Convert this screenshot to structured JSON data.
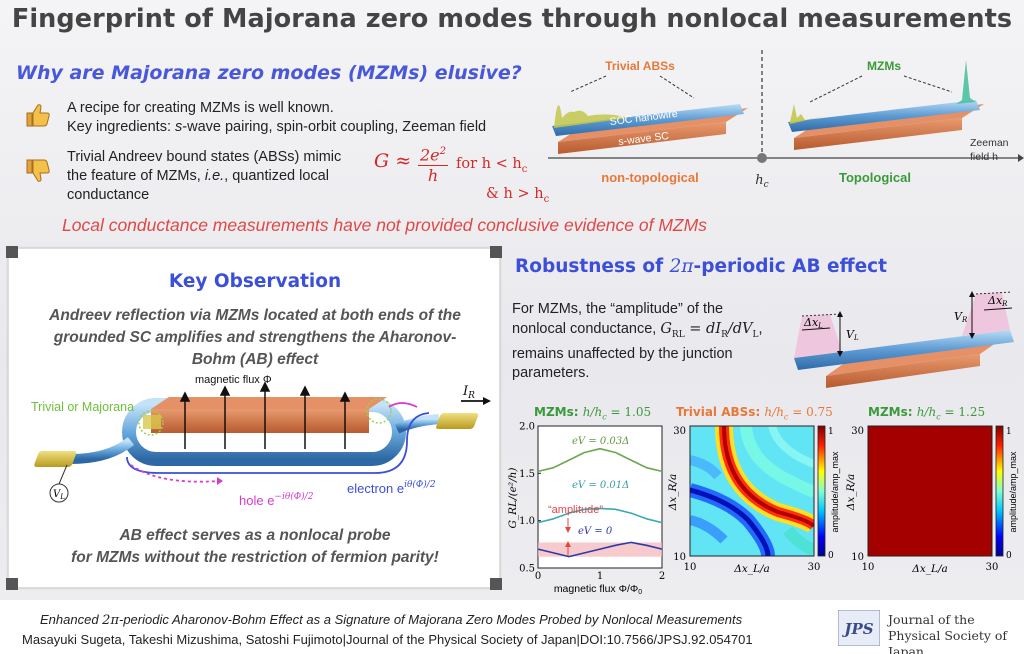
{
  "title": "Fingerprint of Majorana zero modes through nonlocal measurements",
  "why": {
    "heading": "Why are Majorana zero modes (MZMs) elusive?",
    "bullet1_line1": "A recipe for creating MZMs is well known.",
    "bullet1_line2_pre": "Key ingredients: ",
    "bullet1_line2_em": "s",
    "bullet1_line2_post": "-wave pairing, spin-orbit coupling, Zeeman field",
    "bullet2_line1": "Trivial Andreev bound states (ABSs) mimic",
    "bullet2_line2_pre": "the feature of MZMs, ",
    "bullet2_line2_em": "i.e.",
    "bullet2_line2_post": ", quantized local",
    "bullet2_line3": "conductance",
    "formula_main": "G ≈ 2e²/h",
    "formula_num": "2e",
    "formula_sup": "2",
    "formula_den": "h",
    "formula_G": "G ≈",
    "formula_for": "for h < h",
    "formula_for_sub": "c",
    "formula_and": "& h > h",
    "formula_and_sub": "c",
    "local_conductance": "Local conductance measurements have not provided conclusive evidence of MZMs"
  },
  "phase": {
    "trivial_abs": "Trivial ABSs",
    "mzms": "MZMs",
    "soc_nanowire": "SOC nanowire",
    "s_wave_sc": "s-wave SC",
    "zeeman_line1": "Zeeman",
    "zeeman_line2": "field h",
    "non_topological": "non-topological",
    "hc": "h",
    "hc_sub": "c",
    "topological": "Topological"
  },
  "key": {
    "title": "Key Observation",
    "line1": "Andreev reflection via MZMs located at both ends of the",
    "line2": "grounded SC amplifies and strengthens the Aharonov-",
    "line3": "Bohm (AB) effect",
    "flux": "magnetic flux Φ",
    "trivial_or_majorana": "Trivial or Majorana",
    "ir": "I",
    "ir_sub": "R",
    "vl": "V",
    "vl_sub": "L",
    "hole": "hole e",
    "hole_sup": "−iθ(Φ)/2",
    "electron": "electron e",
    "electron_sup": "iθ(Φ)/2",
    "bottom1": "AB effect serves as a nonlocal probe",
    "bottom2": "for MZMs without the restriction of fermion parity!"
  },
  "robust": {
    "title_pre": "Robustness of ",
    "title_math": "2π",
    "title_post": "-periodic AB effect",
    "text1": "For MZMs, the “amplitude” of the",
    "text2_pre": "nonlocal conductance, ",
    "text2_math": "G",
    "text2_sub": "RL",
    "text2_eq": " = dI",
    "text2_sub2": "R",
    "text2_div": "/dV",
    "text2_sub3": "L",
    "text2_post": ",",
    "text3": "remains unaffected by the junction",
    "text4": "parameters.",
    "dxl": "Δx",
    "dxl_sub": "L",
    "dxr": "Δx",
    "dxr_sub": "R",
    "vl": "V",
    "vl_sub": "L",
    "vr": "V",
    "vr_sub": "R"
  },
  "panel1": {
    "title_pre": "MZMs: ",
    "title_math": "h/h",
    "title_sub": "c",
    "title_val": " = 1.05",
    "ylabel": "G_RL/(e²/h)",
    "xlabel": "magnetic flux Φ/Φ",
    "xlabel_sub": "0",
    "curve1": "eV = 0.03Δ",
    "curve2": "eV = 0.01Δ",
    "curve3": "eV = 0",
    "amplitude": "“amplitude”",
    "yticks": [
      "2.0",
      "1.5",
      "1.0",
      "0.5"
    ],
    "xticks": [
      "0",
      "1",
      "2"
    ]
  },
  "panel2": {
    "title_pre": "Trivial ABSs: ",
    "title_math": "h/h",
    "title_sub": "c",
    "title_val": " = 0.75",
    "ylabel": "Δx_R/a",
    "xlabel": "Δx_L/a",
    "yticks": [
      "30",
      "10"
    ],
    "xticks": [
      "10",
      "30"
    ],
    "cbar_label": "amplitude/amp_max",
    "cbar_ticks": [
      "1",
      "0"
    ]
  },
  "panel3": {
    "title_pre": "MZMs: ",
    "title_math": "h/h",
    "title_sub": "c",
    "title_val": " = 1.25",
    "ylabel": "Δx_R/a",
    "xlabel": "Δx_L/a",
    "yticks": [
      "30",
      "10"
    ],
    "xticks": [
      "10",
      "30"
    ],
    "cbar_label": "amplitude/amp_max",
    "cbar_ticks": [
      "1",
      "0"
    ]
  },
  "chart_data": [
    {
      "type": "line",
      "title": "MZMs: h/hc = 1.05",
      "xlabel": "magnetic flux Φ/Φ0",
      "ylabel": "G_RL/(e²/h)",
      "xlim": [
        0,
        2
      ],
      "ylim": [
        0.5,
        2.0
      ],
      "series": [
        {
          "name": "eV = 0.03Δ",
          "x": [
            0,
            0.25,
            0.5,
            0.75,
            1.0,
            1.25,
            1.5,
            1.75,
            2.0
          ],
          "y": [
            1.52,
            1.56,
            1.64,
            1.72,
            1.76,
            1.72,
            1.64,
            1.56,
            1.52
          ]
        },
        {
          "name": "eV = 0.01Δ",
          "x": [
            0,
            0.25,
            0.5,
            0.75,
            1.0,
            1.25,
            1.5,
            1.75,
            2.0
          ],
          "y": [
            0.98,
            1.02,
            1.08,
            1.12,
            1.13,
            1.12,
            1.08,
            1.02,
            0.98
          ]
        },
        {
          "name": "eV = 0",
          "x": [
            0,
            0.25,
            0.5,
            0.75,
            1.0,
            1.25,
            1.5,
            1.75,
            2.0
          ],
          "y": [
            0.7,
            0.66,
            0.62,
            0.66,
            0.7,
            0.74,
            0.77,
            0.74,
            0.7
          ]
        }
      ]
    },
    {
      "type": "heatmap",
      "title": "Trivial ABSs: h/hc = 0.75",
      "xlabel": "Δx_L/a",
      "ylabel": "Δx_R/a",
      "xlim": [
        10,
        30
      ],
      "ylim": [
        10,
        30
      ],
      "colorbar_label": "amplitude/amp_max",
      "colorbar_range": [
        0,
        1
      ]
    },
    {
      "type": "heatmap",
      "title": "MZMs: h/hc = 1.25",
      "xlabel": "Δx_L/a",
      "ylabel": "Δx_R/a",
      "xlim": [
        10,
        30
      ],
      "ylim": [
        10,
        30
      ],
      "colorbar_label": "amplitude/amp_max",
      "colorbar_range": [
        0,
        1
      ],
      "uniform_value": 0.97
    }
  ],
  "footer": {
    "paper_pre": "Enhanced ",
    "paper_math": "2π",
    "paper_post": "-periodic Aharonov-Bohm Effect as a Signature of Majorana Zero Modes Probed by Nonlocal Measurements",
    "authors": "Masayuki Sugeta, Takeshi Mizushima, Satoshi Fujimoto|Journal of the Physical Society of Japan|DOI:10.7566/JPSJ.92.054701",
    "logo": "JPS",
    "journal1": "Journal of the",
    "journal2": "Physical Society of Japan"
  },
  "colors": {
    "heading_blue": "#3c4fd8",
    "warning_red": "#e04848",
    "nanowire": "#6aa8dc",
    "sc_orange": "#d9784a",
    "trivial_orange": "#e87838",
    "topo_green": "#3a9a3a"
  },
  "icons": [
    "thumbs-up-icon",
    "thumbs-down-icon"
  ]
}
